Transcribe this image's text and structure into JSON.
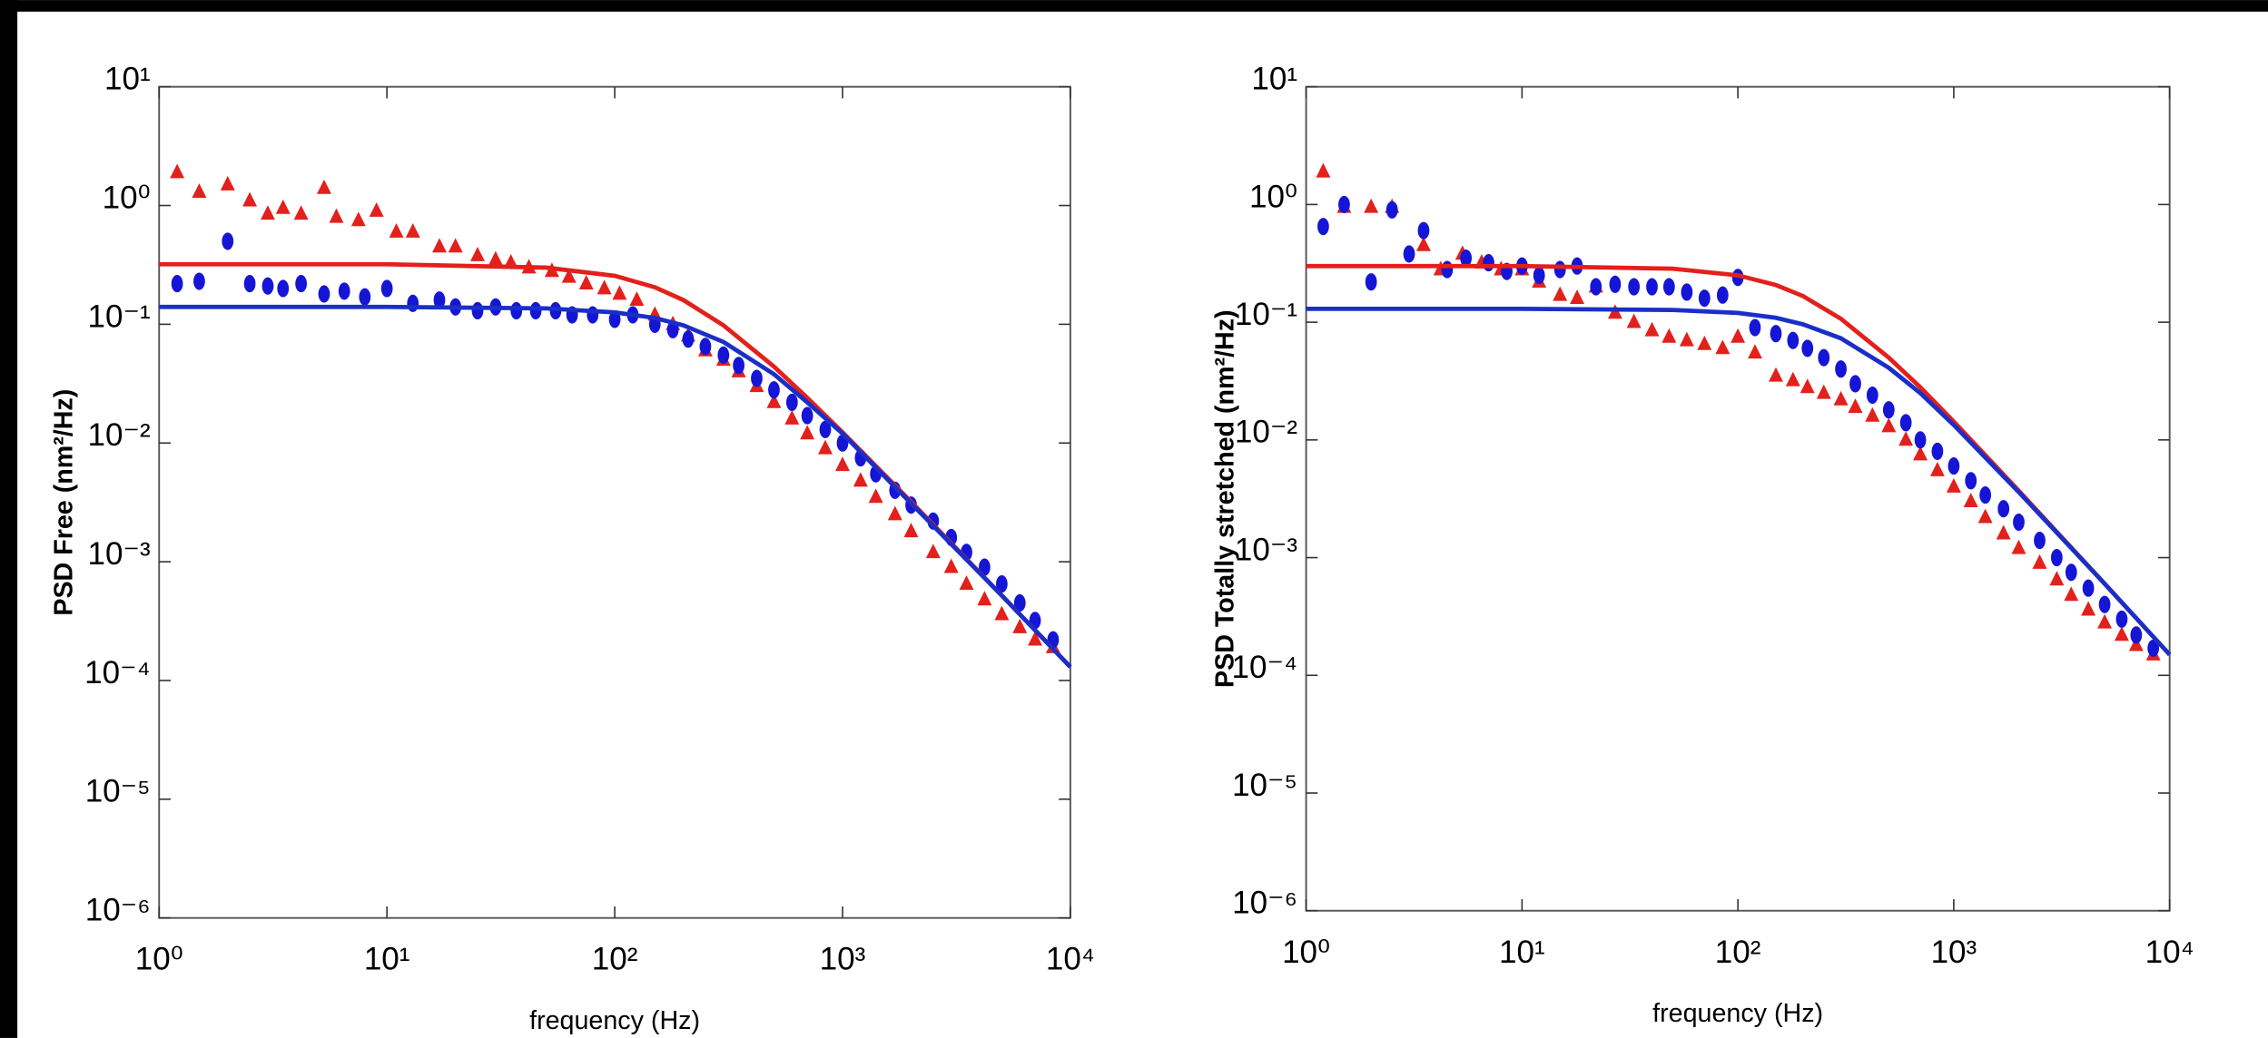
{
  "chart_data": [
    {
      "type": "scatter",
      "log_x": true,
      "log_y": true,
      "xlabel": "frequency (Hz)",
      "ylabel": "PSD Free (nm²/Hz)",
      "xlim": [
        1,
        10000
      ],
      "ylim": [
        1e-06,
        10
      ],
      "xticks": [
        {
          "value": 1,
          "label": "10⁰"
        },
        {
          "value": 10,
          "label": "10¹"
        },
        {
          "value": 100,
          "label": "10²"
        },
        {
          "value": 1000,
          "label": "10³"
        },
        {
          "value": 10000,
          "label": "10⁴"
        }
      ],
      "yticks": [
        {
          "value": 1e-06,
          "label": "10⁻⁶"
        },
        {
          "value": 1e-05,
          "label": "10⁻⁵"
        },
        {
          "value": 0.0001,
          "label": "10⁻⁴"
        },
        {
          "value": 0.001,
          "label": "10⁻³"
        },
        {
          "value": 0.01,
          "label": "10⁻²"
        },
        {
          "value": 0.1,
          "label": "10⁻¹"
        },
        {
          "value": 1,
          "label": "10⁰"
        },
        {
          "value": 10,
          "label": "10¹"
        }
      ],
      "series": [
        {
          "color": "#e3201b",
          "marker": "triangle",
          "x": [
            1.2,
            1.5,
            2,
            2.5,
            3,
            3.5,
            4.2,
            5.3,
            6,
            7.5,
            9,
            11,
            13,
            17,
            20,
            25,
            30,
            35,
            42,
            53,
            63,
            75,
            90,
            105,
            125,
            150,
            180,
            210,
            250,
            300,
            350,
            420,
            500,
            600,
            700,
            840,
            1000,
            1200,
            1400,
            1700,
            2000,
            2500,
            3000,
            3500,
            4200,
            5000,
            6000,
            7000,
            8400
          ],
          "values": [
            1.9,
            1.3,
            1.5,
            1.1,
            0.85,
            0.95,
            0.85,
            1.4,
            0.8,
            0.75,
            0.9,
            0.6,
            0.6,
            0.45,
            0.45,
            0.38,
            0.35,
            0.33,
            0.3,
            0.28,
            0.25,
            0.22,
            0.2,
            0.18,
            0.16,
            0.12,
            0.1,
            0.08,
            0.06,
            0.05,
            0.04,
            0.03,
            0.022,
            0.016,
            0.012,
            0.009,
            0.0065,
            0.0048,
            0.0035,
            0.0025,
            0.0018,
            0.0012,
            0.0009,
            0.00065,
            0.00048,
            0.00036,
            0.00028,
            0.00022,
            0.00019
          ]
        },
        {
          "color": "#1515d6",
          "marker": "ellipse",
          "x": [
            1.2,
            1.5,
            2,
            2.5,
            3,
            3.5,
            4.2,
            5.3,
            6.5,
            8,
            10,
            13,
            17,
            20,
            25,
            30,
            37,
            45,
            55,
            65,
            80,
            100,
            120,
            150,
            180,
            210,
            250,
            300,
            350,
            420,
            500,
            600,
            700,
            840,
            1000,
            1200,
            1400,
            1700,
            2000,
            2500,
            3000,
            3500,
            4200,
            5000,
            6000,
            7000,
            8400
          ],
          "values": [
            0.22,
            0.23,
            0.5,
            0.22,
            0.21,
            0.2,
            0.22,
            0.18,
            0.19,
            0.17,
            0.2,
            0.15,
            0.16,
            0.14,
            0.13,
            0.14,
            0.13,
            0.13,
            0.13,
            0.12,
            0.12,
            0.11,
            0.12,
            0.1,
            0.09,
            0.075,
            0.065,
            0.055,
            0.045,
            0.035,
            0.028,
            0.022,
            0.017,
            0.013,
            0.01,
            0.0075,
            0.0055,
            0.004,
            0.003,
            0.0022,
            0.0016,
            0.0012,
            0.0009,
            0.00065,
            0.00045,
            0.00032,
            0.00022
          ]
        },
        {
          "color": "#e3201b",
          "mode": "line",
          "x": [
            1,
            10,
            50,
            100,
            150,
            200,
            300,
            500,
            700,
            1000,
            2000,
            5000,
            10000
          ],
          "values": [
            0.32,
            0.32,
            0.3,
            0.256,
            0.205,
            0.16,
            0.098,
            0.044,
            0.024,
            0.0123,
            0.0032,
            0.00052,
            0.00013
          ]
        },
        {
          "color": "#1a2fc8",
          "mode": "line",
          "x": [
            1,
            10,
            50,
            100,
            150,
            200,
            300,
            500,
            700,
            1000,
            2000,
            5000,
            10000
          ],
          "values": [
            0.14,
            0.14,
            0.136,
            0.126,
            0.113,
            0.098,
            0.071,
            0.038,
            0.022,
            0.012,
            0.0031,
            0.00052,
            0.00013
          ]
        }
      ]
    },
    {
      "type": "scatter",
      "log_x": true,
      "log_y": true,
      "xlabel": "frequency (Hz)",
      "ylabel": "PSD Totally stretched (nm²/Hz)",
      "xlim": [
        1,
        10000
      ],
      "ylim": [
        1e-06,
        10
      ],
      "xticks": [
        {
          "value": 1,
          "label": "10⁰"
        },
        {
          "value": 10,
          "label": "10¹"
        },
        {
          "value": 100,
          "label": "10²"
        },
        {
          "value": 1000,
          "label": "10³"
        },
        {
          "value": 10000,
          "label": "10⁴"
        }
      ],
      "yticks": [
        {
          "value": 1e-06,
          "label": "10⁻⁶"
        },
        {
          "value": 1e-05,
          "label": "10⁻⁵"
        },
        {
          "value": 0.0001,
          "label": "10⁻⁴"
        },
        {
          "value": 0.001,
          "label": "10⁻³"
        },
        {
          "value": 0.01,
          "label": "10⁻²"
        },
        {
          "value": 0.1,
          "label": "10⁻¹"
        },
        {
          "value": 1,
          "label": "10⁰"
        },
        {
          "value": 10,
          "label": "10¹"
        }
      ],
      "series": [
        {
          "color": "#e3201b",
          "marker": "triangle",
          "x": [
            1.2,
            1.5,
            2,
            2.5,
            3.5,
            4.2,
            5.3,
            6.5,
            8,
            10,
            12,
            15,
            18,
            22,
            27,
            33,
            40,
            48,
            58,
            70,
            85,
            100,
            120,
            150,
            180,
            210,
            250,
            300,
            350,
            420,
            500,
            600,
            700,
            840,
            1000,
            1200,
            1400,
            1700,
            2000,
            2500,
            3000,
            3500,
            4200,
            5000,
            6000,
            7000,
            8400
          ],
          "values": [
            1.9,
            0.95,
            0.95,
            0.95,
            0.45,
            0.28,
            0.38,
            0.32,
            0.28,
            0.28,
            0.22,
            0.17,
            0.16,
            0.2,
            0.12,
            0.1,
            0.085,
            0.075,
            0.07,
            0.065,
            0.06,
            0.075,
            0.055,
            0.035,
            0.032,
            0.028,
            0.025,
            0.022,
            0.019,
            0.016,
            0.013,
            0.01,
            0.0075,
            0.0055,
            0.004,
            0.003,
            0.0022,
            0.0016,
            0.0012,
            0.0009,
            0.00065,
            0.00048,
            0.00036,
            0.00028,
            0.00022,
            0.00018,
            0.00015
          ]
        },
        {
          "color": "#1515d6",
          "marker": "ellipse",
          "x": [
            1.2,
            1.5,
            2,
            2.5,
            3,
            3.5,
            4.5,
            5.5,
            7,
            8.5,
            10,
            12,
            15,
            18,
            22,
            27,
            33,
            40,
            48,
            58,
            70,
            85,
            100,
            120,
            150,
            180,
            210,
            250,
            300,
            350,
            420,
            500,
            600,
            700,
            840,
            1000,
            1200,
            1400,
            1700,
            2000,
            2500,
            3000,
            3500,
            4200,
            5000,
            6000,
            7000,
            8400
          ],
          "values": [
            0.65,
            1.0,
            0.22,
            0.9,
            0.38,
            0.6,
            0.28,
            0.35,
            0.32,
            0.27,
            0.3,
            0.25,
            0.28,
            0.3,
            0.2,
            0.21,
            0.2,
            0.2,
            0.2,
            0.18,
            0.16,
            0.17,
            0.24,
            0.09,
            0.08,
            0.07,
            0.06,
            0.05,
            0.04,
            0.03,
            0.024,
            0.018,
            0.014,
            0.01,
            0.008,
            0.006,
            0.0045,
            0.0034,
            0.0026,
            0.002,
            0.0014,
            0.001,
            0.00075,
            0.00055,
            0.0004,
            0.0003,
            0.00022,
            0.00017
          ]
        },
        {
          "color": "#e3201b",
          "mode": "line",
          "x": [
            1,
            10,
            50,
            100,
            150,
            200,
            300,
            500,
            700,
            1000,
            2000,
            5000,
            10000
          ],
          "values": [
            0.3,
            0.3,
            0.285,
            0.25,
            0.207,
            0.167,
            0.107,
            0.05,
            0.028,
            0.0143,
            0.0037,
            0.0006,
            0.00015
          ]
        },
        {
          "color": "#1a2fc8",
          "mode": "line",
          "x": [
            1,
            10,
            50,
            100,
            150,
            200,
            300,
            500,
            700,
            1000,
            2000,
            5000,
            10000
          ],
          "values": [
            0.13,
            0.13,
            0.127,
            0.12,
            0.109,
            0.096,
            0.073,
            0.041,
            0.025,
            0.0134,
            0.0036,
            0.0006,
            0.00015
          ]
        }
      ]
    }
  ]
}
